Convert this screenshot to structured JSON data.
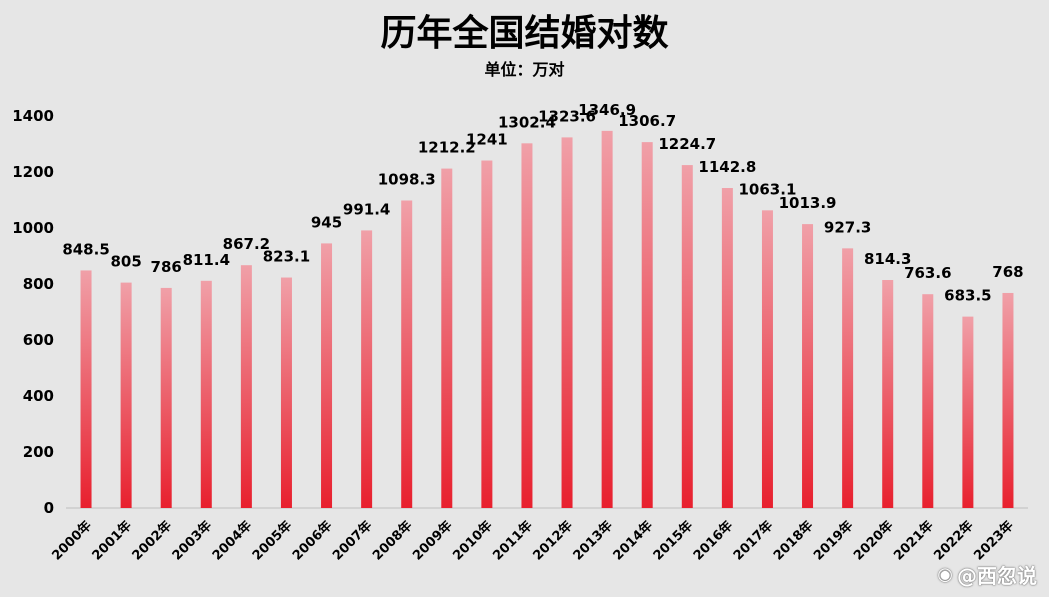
{
  "chart_data": {
    "type": "bar",
    "title": "历年全国结婚对数",
    "subtitle": "单位：万对",
    "categories": [
      "2000年",
      "2001年",
      "2002年",
      "2003年",
      "2004年",
      "2005年",
      "2006年",
      "2007年",
      "2008年",
      "2009年",
      "2010年",
      "2011年",
      "2012年",
      "2013年",
      "2014年",
      "2015年",
      "2016年",
      "2017年",
      "2018年",
      "2019年",
      "2020年",
      "2021年",
      "2022年",
      "2023年"
    ],
    "values": [
      848.5,
      805,
      786,
      811.4,
      867.2,
      823.1,
      945,
      991.4,
      1098.3,
      1212.2,
      1241,
      1302.4,
      1323.6,
      1346.9,
      1306.7,
      1224.7,
      1142.8,
      1063.1,
      1013.9,
      927.3,
      814.3,
      763.6,
      683.5,
      768
    ],
    "value_labels": [
      "848.5",
      "805",
      "786",
      "811.4",
      "867.2",
      "823.1",
      "945",
      "991.4",
      "1098.3",
      "1212.2",
      "1241",
      "1302.4",
      "1323.6",
      "1346.9",
      "1306.7",
      "1224.7",
      "1142.8",
      "1063.1",
      "1013.9",
      "927.3",
      "814.3",
      "763.6",
      "683.5",
      "768"
    ],
    "yticks": [
      "0",
      "200",
      "400",
      "600",
      "800",
      "1000",
      "1200",
      "1400"
    ],
    "ylim": [
      0,
      1400
    ],
    "grid": false,
    "bar_color_top": "#f0a0a8",
    "bar_color_bottom": "#e8202e",
    "background": "#e6e6e6"
  },
  "watermark": {
    "icon": "weibo-icon",
    "text": "@西忽说"
  }
}
